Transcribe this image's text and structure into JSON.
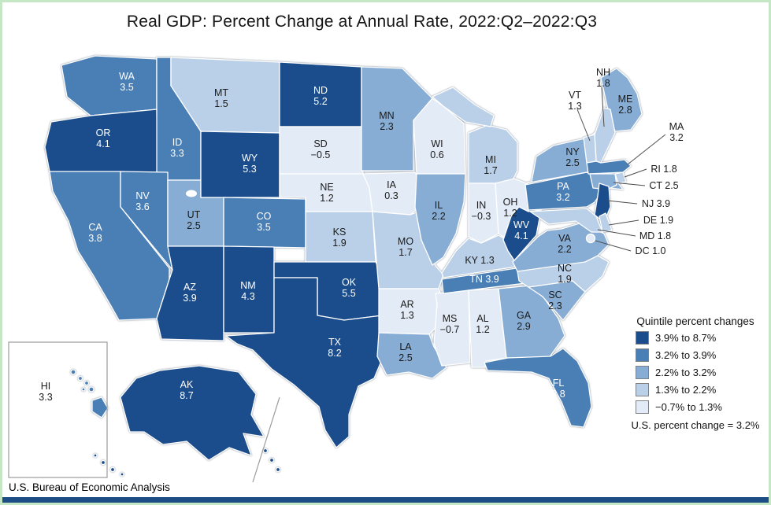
{
  "title": "Real GDP: Percent Change at Annual Rate, 2022:Q2–2022:Q3",
  "source": "U.S. Bureau of Economic Analysis",
  "legend": {
    "title": "Quintile percent changes",
    "note": "U.S. percent change = 3.2%",
    "items": [
      {
        "label": "3.9% to 8.7%",
        "color": "#1b4d8c"
      },
      {
        "label": "3.2% to 3.9%",
        "color": "#4a7fb5"
      },
      {
        "label": "2.2% to 3.2%",
        "color": "#87add4"
      },
      {
        "label": "1.3% to 2.2%",
        "color": "#bad0e8"
      },
      {
        "label": "−0.7% to 1.3%",
        "color": "#e3ecf6"
      }
    ]
  },
  "chart_data": {
    "type": "choropleth-map",
    "title": "Real GDP: Percent Change at Annual Rate, 2022:Q2–2022:Q3",
    "unit": "percent change at annual rate",
    "us_value": 3.2,
    "states": [
      {
        "abbr": "WA",
        "value": 3.5,
        "label": "3.5",
        "quintile": 2
      },
      {
        "abbr": "OR",
        "value": 4.1,
        "label": "4.1",
        "quintile": 1
      },
      {
        "abbr": "CA",
        "value": 3.8,
        "label": "3.8",
        "quintile": 2
      },
      {
        "abbr": "ID",
        "value": 3.3,
        "label": "3.3",
        "quintile": 2
      },
      {
        "abbr": "NV",
        "value": 3.6,
        "label": "3.6",
        "quintile": 2
      },
      {
        "abbr": "UT",
        "value": 2.5,
        "label": "2.5",
        "quintile": 3
      },
      {
        "abbr": "AZ",
        "value": 3.9,
        "label": "3.9",
        "quintile": 1
      },
      {
        "abbr": "MT",
        "value": 1.5,
        "label": "1.5",
        "quintile": 4
      },
      {
        "abbr": "WY",
        "value": 5.3,
        "label": "5.3",
        "quintile": 1
      },
      {
        "abbr": "CO",
        "value": 3.5,
        "label": "3.5",
        "quintile": 2
      },
      {
        "abbr": "NM",
        "value": 4.3,
        "label": "4.3",
        "quintile": 1
      },
      {
        "abbr": "ND",
        "value": 5.2,
        "label": "5.2",
        "quintile": 1
      },
      {
        "abbr": "SD",
        "value": -0.5,
        "label": "−0.5",
        "quintile": 5
      },
      {
        "abbr": "NE",
        "value": 1.2,
        "label": "1.2",
        "quintile": 5
      },
      {
        "abbr": "KS",
        "value": 1.9,
        "label": "1.9",
        "quintile": 4
      },
      {
        "abbr": "OK",
        "value": 5.5,
        "label": "5.5",
        "quintile": 1
      },
      {
        "abbr": "TX",
        "value": 8.2,
        "label": "8.2",
        "quintile": 1
      },
      {
        "abbr": "MN",
        "value": 2.3,
        "label": "2.3",
        "quintile": 3
      },
      {
        "abbr": "IA",
        "value": 0.3,
        "label": "0.3",
        "quintile": 5
      },
      {
        "abbr": "MO",
        "value": 1.7,
        "label": "1.7",
        "quintile": 4
      },
      {
        "abbr": "AR",
        "value": 1.3,
        "label": "1.3",
        "quintile": 5
      },
      {
        "abbr": "LA",
        "value": 2.5,
        "label": "2.5",
        "quintile": 3
      },
      {
        "abbr": "WI",
        "value": 0.6,
        "label": "0.6",
        "quintile": 5
      },
      {
        "abbr": "IL",
        "value": 2.2,
        "label": "2.2",
        "quintile": 3
      },
      {
        "abbr": "MS",
        "value": -0.7,
        "label": "−0.7",
        "quintile": 5
      },
      {
        "abbr": "MI",
        "value": 1.7,
        "label": "1.7",
        "quintile": 4
      },
      {
        "abbr": "IN",
        "value": -0.3,
        "label": "−0.3",
        "quintile": 5
      },
      {
        "abbr": "OH",
        "value": 1.2,
        "label": "1.2",
        "quintile": 5
      },
      {
        "abbr": "KY",
        "value": 1.3,
        "label": "1.3",
        "quintile": 4
      },
      {
        "abbr": "TN",
        "value": 3.9,
        "label": "3.9",
        "quintile": 2
      },
      {
        "abbr": "AL",
        "value": 1.2,
        "label": "1.2",
        "quintile": 5
      },
      {
        "abbr": "GA",
        "value": 2.9,
        "label": "2.9",
        "quintile": 3
      },
      {
        "abbr": "FL",
        "value": 3.8,
        "label": "3.8",
        "quintile": 2
      },
      {
        "abbr": "SC",
        "value": 2.3,
        "label": "2.3",
        "quintile": 3
      },
      {
        "abbr": "NC",
        "value": 1.9,
        "label": "1.9",
        "quintile": 4
      },
      {
        "abbr": "VA",
        "value": 2.2,
        "label": "2.2",
        "quintile": 3
      },
      {
        "abbr": "WV",
        "value": 4.1,
        "label": "4.1",
        "quintile": 1
      },
      {
        "abbr": "PA",
        "value": 3.2,
        "label": "3.2",
        "quintile": 2
      },
      {
        "abbr": "NY",
        "value": 2.5,
        "label": "2.5",
        "quintile": 3
      },
      {
        "abbr": "ME",
        "value": 2.8,
        "label": "2.8",
        "quintile": 3
      },
      {
        "abbr": "NH",
        "value": 1.8,
        "label": "1.8",
        "quintile": 4
      },
      {
        "abbr": "VT",
        "value": 1.3,
        "label": "1.3",
        "quintile": 4
      },
      {
        "abbr": "MA",
        "value": 3.2,
        "label": "3.2",
        "quintile": 2
      },
      {
        "abbr": "RI",
        "value": 1.8,
        "label": "1.8",
        "quintile": 4
      },
      {
        "abbr": "CT",
        "value": 2.5,
        "label": "2.5",
        "quintile": 3
      },
      {
        "abbr": "NJ",
        "value": 3.9,
        "label": "3.9",
        "quintile": 1
      },
      {
        "abbr": "DE",
        "value": 1.9,
        "label": "1.9",
        "quintile": 4
      },
      {
        "abbr": "MD",
        "value": 1.8,
        "label": "1.8",
        "quintile": 4
      },
      {
        "abbr": "DC",
        "value": 1.0,
        "label": "1.0",
        "quintile": 5
      },
      {
        "abbr": "AK",
        "value": 8.7,
        "label": "8.7",
        "quintile": 1
      },
      {
        "abbr": "HI",
        "value": 3.3,
        "label": "3.3",
        "quintile": 2
      }
    ]
  }
}
